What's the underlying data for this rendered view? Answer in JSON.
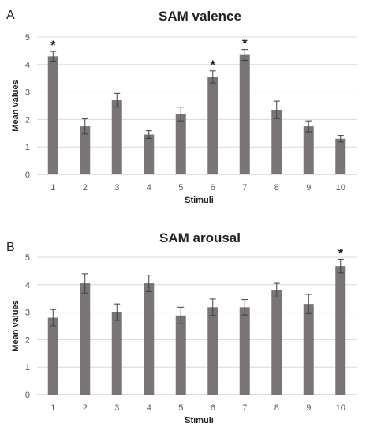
{
  "colors": {
    "bar": "#7a7574",
    "grid": "#d9d9d9",
    "axis": "#bfbfbf",
    "error_bar": "#404040"
  },
  "chart_data": [
    {
      "panel": "A",
      "type": "bar",
      "title": "SAM valence",
      "xlabel": "Stimuli",
      "ylabel": "Mean values",
      "ylim": [
        0,
        5
      ],
      "yticks": [
        0,
        1,
        2,
        3,
        4,
        5
      ],
      "grid": true,
      "categories": [
        "1",
        "2",
        "3",
        "4",
        "5",
        "6",
        "7",
        "8",
        "9",
        "10"
      ],
      "values": [
        4.3,
        1.75,
        2.7,
        1.45,
        2.2,
        3.55,
        4.35,
        2.35,
        1.75,
        1.3
      ],
      "errors": [
        0.18,
        0.28,
        0.25,
        0.14,
        0.25,
        0.22,
        0.2,
        0.32,
        0.2,
        0.12
      ],
      "significance": [
        "*",
        "",
        "",
        "",
        "",
        "*",
        "*",
        "",
        "",
        ""
      ]
    },
    {
      "panel": "B",
      "type": "bar",
      "title": "SAM arousal",
      "xlabel": "Stimuli",
      "ylabel": "Mean values",
      "ylim": [
        0,
        5
      ],
      "yticks": [
        0,
        1,
        2,
        3,
        4,
        5
      ],
      "grid": true,
      "categories": [
        "1",
        "2",
        "3",
        "4",
        "5",
        "6",
        "7",
        "8",
        "9",
        "10"
      ],
      "values": [
        2.8,
        4.05,
        3.0,
        4.05,
        2.88,
        3.18,
        3.18,
        3.8,
        3.3,
        4.68
      ],
      "errors": [
        0.3,
        0.35,
        0.3,
        0.3,
        0.3,
        0.3,
        0.28,
        0.25,
        0.35,
        0.25
      ],
      "significance": [
        "",
        "",
        "",
        "",
        "",
        "",
        "",
        "",
        "",
        "*"
      ]
    }
  ]
}
